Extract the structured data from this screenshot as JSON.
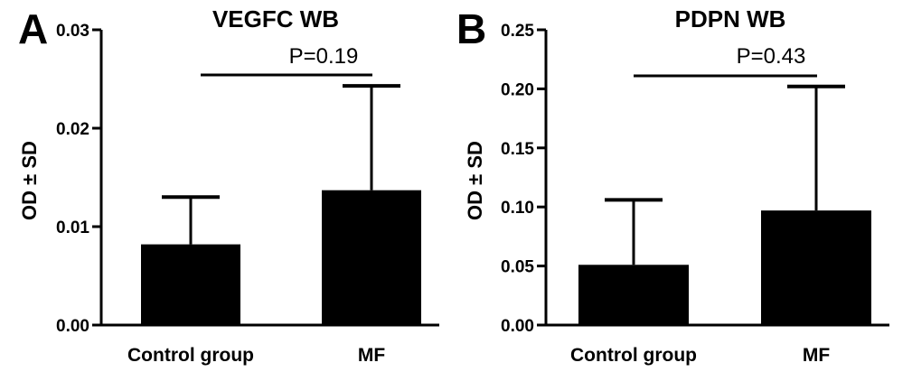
{
  "chart_data": [
    {
      "type": "bar",
      "panel": "A",
      "title": "VEGFC WB",
      "ylabel": "OD ± SD",
      "xlabel": "",
      "categories": [
        "Control group",
        "MF"
      ],
      "values": [
        0.0082,
        0.0137
      ],
      "error": [
        0.0048,
        0.0106
      ],
      "ylim": [
        0,
        0.03
      ],
      "yticks": [
        "0.00",
        "0.01",
        "0.02",
        "0.03"
      ],
      "yticks_values": [
        0,
        0.01,
        0.02,
        0.03
      ],
      "annotation": "P=0.19",
      "grid": false,
      "colors": [
        "#000000"
      ]
    },
    {
      "type": "bar",
      "panel": "B",
      "title": "PDPN WB",
      "ylabel": "OD ± SD",
      "xlabel": "",
      "categories": [
        "Control group",
        "MF"
      ],
      "values": [
        0.051,
        0.097
      ],
      "error": [
        0.055,
        0.105
      ],
      "ylim": [
        0,
        0.25
      ],
      "yticks": [
        "0.00",
        "0.05",
        "0.10",
        "0.15",
        "0.20",
        "0.25"
      ],
      "yticks_values": [
        0,
        0.05,
        0.1,
        0.15,
        0.2,
        0.25
      ],
      "annotation": "P=0.43",
      "grid": false,
      "colors": [
        "#000000"
      ]
    }
  ]
}
